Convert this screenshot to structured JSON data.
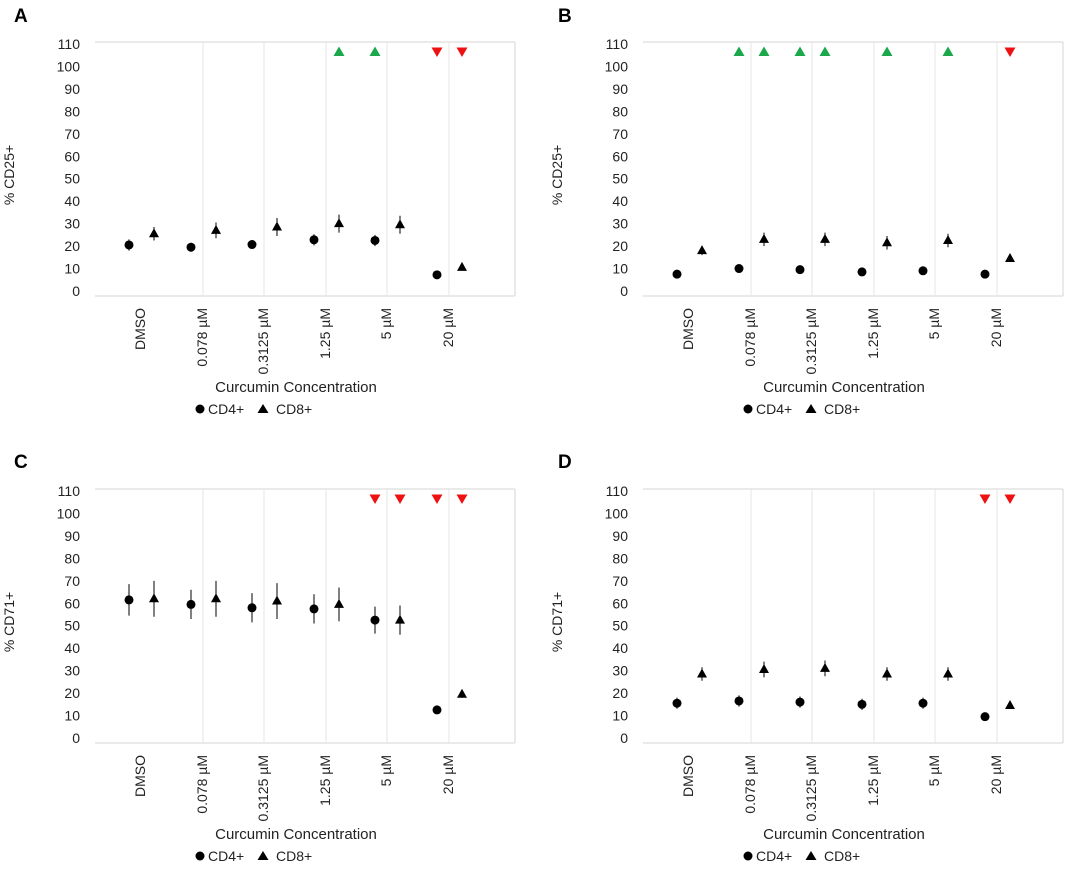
{
  "figure": {
    "panels": [
      "A",
      "B",
      "C",
      "D"
    ]
  },
  "chart_data": [
    {
      "panel": "A",
      "type": "scatter",
      "xlabel": "Curcumin Concentration",
      "ylabel": "% CD25+",
      "ylim": [
        0,
        110
      ],
      "yticks": [
        0,
        10,
        20,
        30,
        40,
        50,
        60,
        70,
        80,
        90,
        100,
        110
      ],
      "categories": [
        "DMSO",
        "0.078 µM",
        "0.3125 µM",
        "1.25 µM",
        "5 µM",
        "20 µM"
      ],
      "legend": [
        "CD4+",
        "CD8+"
      ],
      "series": [
        {
          "name": "CD4+",
          "marker": "circle",
          "values": [
            20.5,
            19.5,
            20.7,
            22.8,
            22.5,
            7.2
          ],
          "errors": [
            2.5,
            2,
            1.8,
            2.5,
            2.5,
            0.8
          ]
        },
        {
          "name": "CD8+",
          "marker": "triangle",
          "values": [
            25.5,
            27,
            28.5,
            30,
            29.5,
            10.5
          ],
          "errors": [
            3,
            3.5,
            4,
            4,
            4,
            1
          ]
        }
      ],
      "significance": {
        "CD4+": [
          null,
          null,
          null,
          null,
          "up",
          "down"
        ],
        "CD8+": [
          null,
          null,
          null,
          "up",
          null,
          "down"
        ]
      },
      "sig_colors": {
        "up": "#1aa84a",
        "down": "#ee1111"
      }
    },
    {
      "panel": "B",
      "type": "scatter",
      "xlabel": "Curcumin Concentration",
      "ylabel": "% CD25+",
      "ylim": [
        0,
        110
      ],
      "yticks": [
        0,
        10,
        20,
        30,
        40,
        50,
        60,
        70,
        80,
        90,
        100,
        110
      ],
      "categories": [
        "DMSO",
        "0.078 µM",
        "0.3125 µM",
        "1.25 µM",
        "5 µM",
        "20 µM"
      ],
      "legend": [
        "CD4+",
        "CD8+"
      ],
      "series": [
        {
          "name": "CD4+",
          "marker": "circle",
          "values": [
            7.5,
            10,
            9.5,
            8.5,
            9,
            7.5
          ],
          "errors": [
            0.8,
            0.8,
            0.8,
            0.8,
            0.8,
            0.8
          ]
        },
        {
          "name": "CD8+",
          "marker": "triangle",
          "values": [
            18,
            23,
            23,
            21.5,
            22.5,
            14.5
          ],
          "errors": [
            2,
            3,
            3,
            3,
            3,
            1.5
          ]
        }
      ],
      "significance": {
        "CD4+": [
          null,
          "up",
          "up",
          null,
          null,
          null
        ],
        "CD8+": [
          null,
          "up",
          "up",
          "up",
          "up",
          "down"
        ]
      },
      "sig_colors": {
        "up": "#1aa84a",
        "down": "#ee1111"
      }
    },
    {
      "panel": "C",
      "type": "scatter",
      "xlabel": "Curcumin Concentration",
      "ylabel": "% CD71+",
      "ylim": [
        0,
        110
      ],
      "yticks": [
        0,
        10,
        20,
        30,
        40,
        50,
        60,
        70,
        80,
        90,
        100,
        110
      ],
      "categories": [
        "DMSO",
        "0.078 µM",
        "0.3125 µM",
        "1.25 µM",
        "5 µM",
        "20 µM"
      ],
      "legend": [
        "CD4+",
        "CD8+"
      ],
      "series": [
        {
          "name": "CD4+",
          "marker": "circle",
          "values": [
            61.5,
            59.5,
            58,
            57.5,
            52.5,
            12.5
          ],
          "errors": [
            7,
            6.5,
            6.5,
            6.5,
            6,
            1
          ]
        },
        {
          "name": "CD8+",
          "marker": "triangle",
          "values": [
            62,
            62,
            61,
            59.5,
            52.5,
            19.5
          ],
          "errors": [
            8,
            8,
            8,
            7.5,
            6.5,
            1.5
          ]
        }
      ],
      "significance": {
        "CD4+": [
          null,
          null,
          null,
          null,
          "down",
          "down"
        ],
        "CD8+": [
          null,
          null,
          null,
          null,
          "down",
          "down"
        ]
      },
      "sig_colors": {
        "up": "#1aa84a",
        "down": "#ee1111"
      }
    },
    {
      "panel": "D",
      "type": "scatter",
      "xlabel": "Curcumin Concentration",
      "ylabel": "% CD71+",
      "ylim": [
        0,
        110
      ],
      "yticks": [
        0,
        10,
        20,
        30,
        40,
        50,
        60,
        70,
        80,
        90,
        100,
        110
      ],
      "categories": [
        "DMSO",
        "0.078 µM",
        "0.3125 µM",
        "1.25 µM",
        "5 µM",
        "20 µM"
      ],
      "legend": [
        "CD4+",
        "CD8+"
      ],
      "series": [
        {
          "name": "CD4+",
          "marker": "circle",
          "values": [
            15.5,
            16.5,
            16,
            15,
            15.5,
            9.5
          ],
          "errors": [
            2.5,
            2.5,
            2.5,
            2.5,
            2.5,
            0.8
          ]
        },
        {
          "name": "CD8+",
          "marker": "triangle",
          "values": [
            28.5,
            30.5,
            31,
            28.5,
            28.5,
            14.5
          ],
          "errors": [
            3,
            3.5,
            3.5,
            3,
            3,
            1
          ]
        }
      ],
      "significance": {
        "CD4+": [
          null,
          null,
          null,
          null,
          null,
          "down"
        ],
        "CD8+": [
          null,
          null,
          null,
          null,
          null,
          "down"
        ]
      },
      "sig_colors": {
        "up": "#1aa84a",
        "down": "#ee1111"
      }
    }
  ]
}
